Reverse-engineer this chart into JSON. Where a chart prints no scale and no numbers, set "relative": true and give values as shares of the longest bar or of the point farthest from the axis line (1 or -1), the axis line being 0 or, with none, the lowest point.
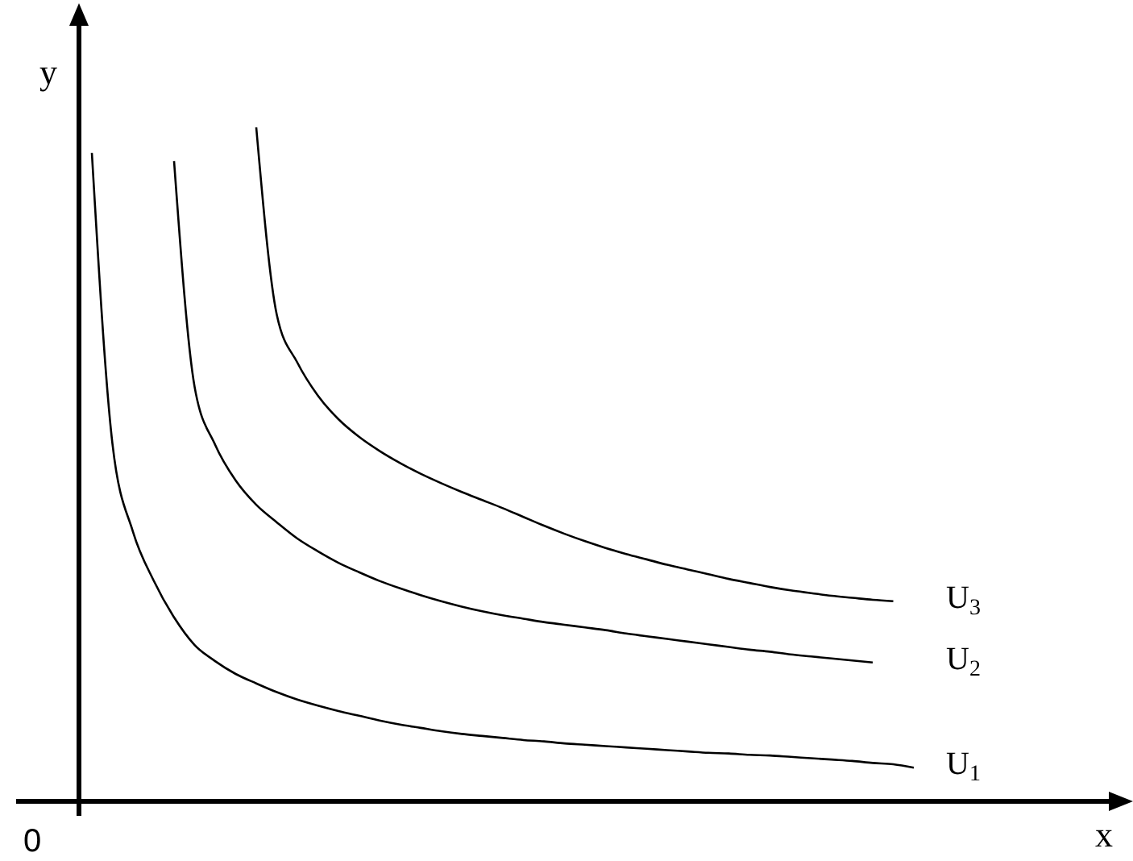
{
  "chart_data": {
    "type": "line",
    "relative": true,
    "xlabel": "x",
    "ylabel": "y",
    "annotations": [
      "0"
    ],
    "categories": [
      null,
      null,
      null,
      null,
      null,
      null,
      null,
      null,
      null,
      null,
      null,
      null,
      null,
      null,
      null,
      null,
      null,
      null,
      null,
      null,
      null,
      null,
      null,
      null,
      null,
      null,
      null,
      null,
      null,
      null,
      null,
      null,
      null,
      null,
      null,
      null,
      null,
      null,
      null,
      null,
      null
    ],
    "series": [
      {
        "name": "U$_{1}$",
        "color": "#000000",
        "values": [
          0.962,
          0.531,
          0.4,
          0.328,
          0.273,
          0.232,
          0.208,
          0.189,
          0.175,
          0.162,
          0.151,
          0.142,
          0.134,
          0.127,
          0.12,
          0.114,
          0.109,
          0.104,
          0.1,
          0.097,
          0.094,
          0.091,
          0.089,
          0.086,
          0.084,
          0.082,
          0.08,
          0.078,
          0.076,
          0.074,
          0.072,
          0.071,
          0.069,
          0.068,
          0.066,
          0.064,
          0.062,
          0.06,
          0.057,
          0.055,
          0.05
        ]
      },
      {
        "name": "U$_{2}$",
        "color": "#000000",
        "values": [
          null,
          null,
          null,
          null,
          0.95,
          0.615,
          0.529,
          0.476,
          0.44,
          0.414,
          0.39,
          0.371,
          0.354,
          0.34,
          0.327,
          0.316,
          0.306,
          0.297,
          0.289,
          0.282,
          0.276,
          0.271,
          0.266,
          0.262,
          0.258,
          0.254,
          0.249,
          0.245,
          0.241,
          0.237,
          0.233,
          0.229,
          0.225,
          0.222,
          0.218,
          0.215,
          0.212,
          0.209,
          0.206,
          null,
          null
        ]
      },
      {
        "name": "U$_{3}$",
        "color": "#000000",
        "values": [
          null,
          null,
          null,
          null,
          null,
          null,
          null,
          null,
          1.0,
          0.722,
          0.651,
          0.602,
          0.567,
          0.541,
          0.52,
          0.502,
          0.486,
          0.472,
          0.459,
          0.447,
          0.435,
          0.422,
          0.409,
          0.397,
          0.386,
          0.376,
          0.367,
          0.359,
          0.351,
          0.344,
          0.337,
          0.33,
          0.324,
          0.318,
          0.313,
          0.309,
          0.305,
          0.302,
          0.299,
          0.297,
          null
        ]
      }
    ],
    "line_style": "solid",
    "marker": "none"
  }
}
